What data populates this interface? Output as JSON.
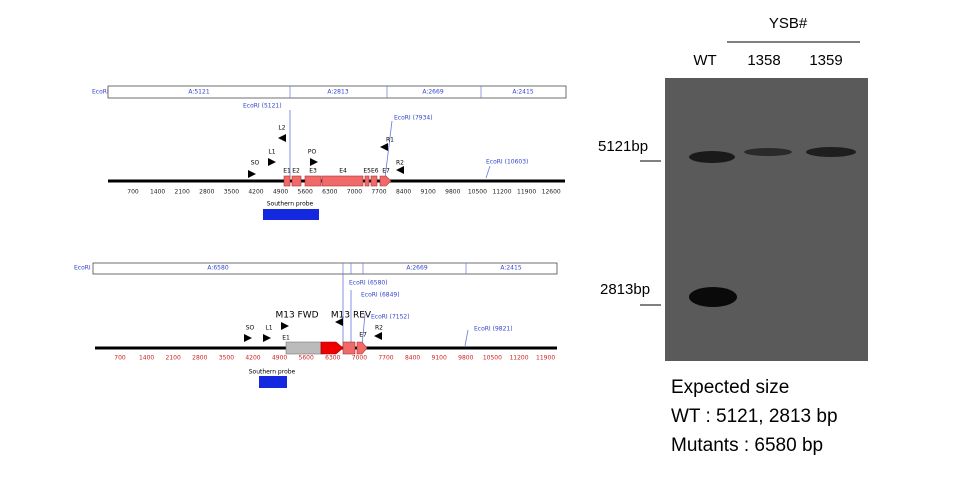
{
  "map_top": {
    "enzyme": "EcoRI",
    "fragments": [
      "A:5121",
      "A:2813",
      "A:2669",
      "A:2415"
    ],
    "sites": [
      "EcoRI (5121)",
      "EcoRI (7934)",
      "EcoRI (10603)"
    ],
    "primers": [
      "L2",
      "L1",
      "SO",
      "PO",
      "R1",
      "R2"
    ],
    "exons": [
      "E1",
      "E2",
      "E3",
      "E4",
      "E5E6",
      "E7"
    ],
    "ticks": [
      700,
      1400,
      2100,
      2800,
      3500,
      4200,
      4900,
      5600,
      6300,
      7000,
      7700,
      8400,
      9100,
      9800,
      10500,
      11200,
      11900,
      12600
    ],
    "probe": "Southern probe"
  },
  "map_bottom": {
    "enzyme": "EcoRI",
    "fragments": [
      "A:6580",
      "A:2669",
      "A:2415"
    ],
    "sites": [
      "EcoRI (6580)",
      "EcoRI (6849)",
      "EcoRI (7152)",
      "EcoRI (9821)"
    ],
    "primers": [
      "M13 FWD",
      "M13 REV",
      "SO",
      "L1",
      "R2"
    ],
    "exons": [
      "E1",
      "E7"
    ],
    "ticks": [
      700,
      1400,
      2100,
      2800,
      3500,
      4200,
      4900,
      5600,
      6300,
      7000,
      7700,
      8400,
      9100,
      9800,
      10500,
      11200,
      11900
    ],
    "probe": "Southern probe"
  },
  "gel": {
    "group": "YSB#",
    "lanes": [
      "WT",
      "1358",
      "1359"
    ],
    "markers": [
      "5121bp",
      "2813bp"
    ]
  },
  "caption": {
    "title": "Expected size",
    "lines": [
      "WT : 5121, 2813 bp",
      "Mutants : 6580 bp"
    ]
  }
}
